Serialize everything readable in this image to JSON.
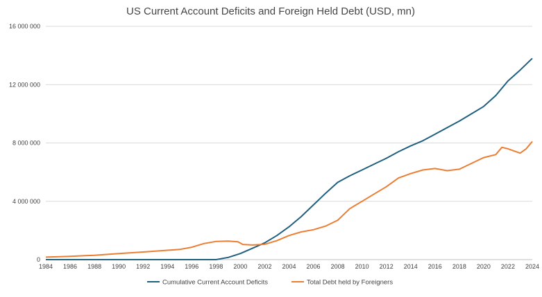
{
  "chart_data": {
    "type": "line",
    "title": "US Current Account Deficits and Foreign Held Debt (USD, mn)",
    "xlabel": "",
    "ylabel": "",
    "xlim": [
      1984,
      2024
    ],
    "ylim": [
      0,
      16000000
    ],
    "x_ticks": [
      "1984",
      "1986",
      "1988",
      "1990",
      "1992",
      "1994",
      "1996",
      "1998",
      "2000",
      "2002",
      "2004",
      "2006",
      "2008",
      "2010",
      "2012",
      "2014",
      "2016",
      "2018",
      "2020",
      "2022",
      "2024"
    ],
    "y_ticks": [
      "0",
      "4 000 000",
      "8 000 000",
      "12 000 000",
      "16 000 000"
    ],
    "grid": "horizontal",
    "legend_position": "bottom",
    "series": [
      {
        "name": "Cumulative Current Account Deficits",
        "color": "#1f5f7f",
        "points": [
          [
            1984,
            0
          ],
          [
            1990,
            0
          ],
          [
            1996,
            0
          ],
          [
            1998,
            0
          ],
          [
            1999,
            150000
          ],
          [
            2000,
            420000
          ],
          [
            2001,
            780000
          ],
          [
            2002,
            1150000
          ],
          [
            2003,
            1650000
          ],
          [
            2004,
            2250000
          ],
          [
            2005,
            2950000
          ],
          [
            2006,
            3750000
          ],
          [
            2007,
            4550000
          ],
          [
            2008,
            5300000
          ],
          [
            2009,
            5750000
          ],
          [
            2010,
            6150000
          ],
          [
            2011,
            6550000
          ],
          [
            2012,
            6950000
          ],
          [
            2013,
            7400000
          ],
          [
            2014,
            7800000
          ],
          [
            2015,
            8150000
          ],
          [
            2016,
            8600000
          ],
          [
            2017,
            9050000
          ],
          [
            2018,
            9500000
          ],
          [
            2019,
            10000000
          ],
          [
            2020,
            10500000
          ],
          [
            2021,
            11250000
          ],
          [
            2022,
            12250000
          ],
          [
            2023,
            13000000
          ],
          [
            2024,
            13800000
          ]
        ]
      },
      {
        "name": "Total Debt held by Foreigners",
        "color": "#ed7d31",
        "points": [
          [
            1984,
            170000
          ],
          [
            1986,
            230000
          ],
          [
            1988,
            300000
          ],
          [
            1990,
            420000
          ],
          [
            1992,
            520000
          ],
          [
            1994,
            640000
          ],
          [
            1995,
            700000
          ],
          [
            1996,
            850000
          ],
          [
            1997,
            1100000
          ],
          [
            1998,
            1250000
          ],
          [
            1999,
            1270000
          ],
          [
            1999.8,
            1220000
          ],
          [
            2000.2,
            1040000
          ],
          [
            2001,
            1000000
          ],
          [
            2002,
            1050000
          ],
          [
            2003,
            1300000
          ],
          [
            2004,
            1650000
          ],
          [
            2005,
            1900000
          ],
          [
            2006,
            2050000
          ],
          [
            2007,
            2300000
          ],
          [
            2008,
            2700000
          ],
          [
            2009,
            3500000
          ],
          [
            2010,
            4000000
          ],
          [
            2011,
            4500000
          ],
          [
            2012,
            5000000
          ],
          [
            2013,
            5600000
          ],
          [
            2014,
            5900000
          ],
          [
            2015,
            6150000
          ],
          [
            2016,
            6250000
          ],
          [
            2017,
            6100000
          ],
          [
            2018,
            6200000
          ],
          [
            2019,
            6600000
          ],
          [
            2020,
            7000000
          ],
          [
            2021,
            7200000
          ],
          [
            2021.5,
            7700000
          ],
          [
            2022,
            7600000
          ],
          [
            2023,
            7300000
          ],
          [
            2023.5,
            7600000
          ],
          [
            2024,
            8100000
          ]
        ]
      }
    ]
  }
}
